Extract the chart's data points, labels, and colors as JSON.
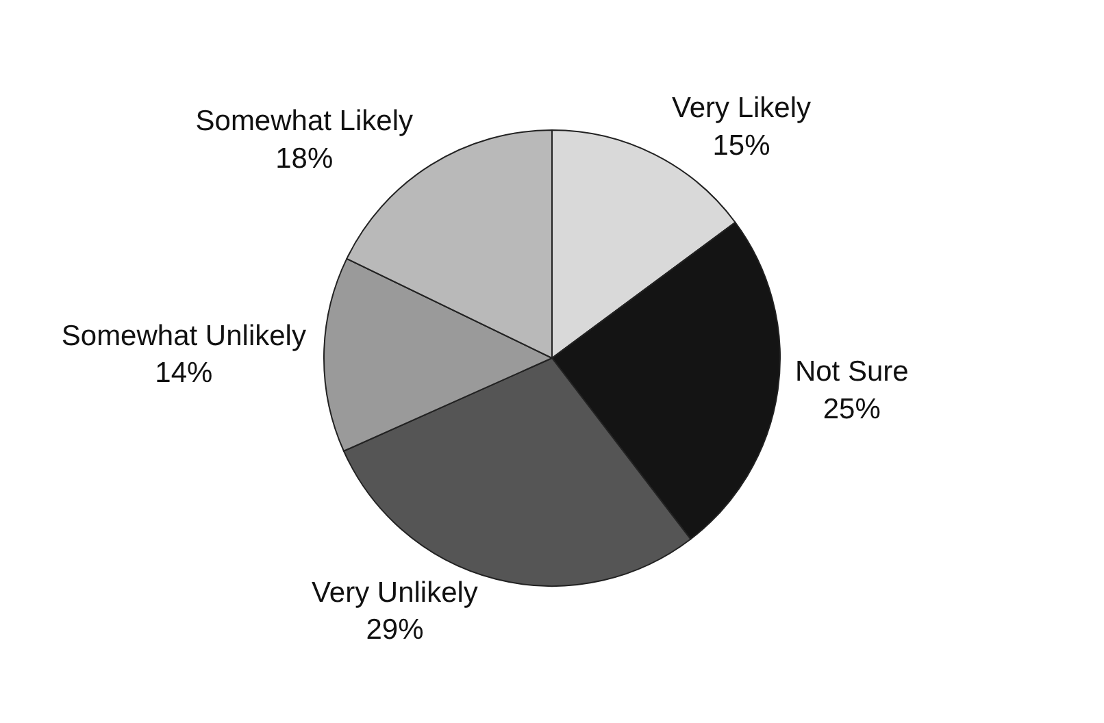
{
  "chart_data": {
    "type": "pie",
    "categories": [
      "Very Likely",
      "Not Sure",
      "Very Unlikely",
      "Somewhat Unlikely",
      "Somewhat Likely"
    ],
    "values": [
      15,
      25,
      29,
      14,
      18
    ],
    "value_labels": [
      "15%",
      "25%",
      "29%",
      "14%",
      "18%"
    ],
    "colors": [
      "#d9d9d9",
      "#141414",
      "#555555",
      "#9a9a9a",
      "#b9b9b9"
    ],
    "legend": false
  }
}
